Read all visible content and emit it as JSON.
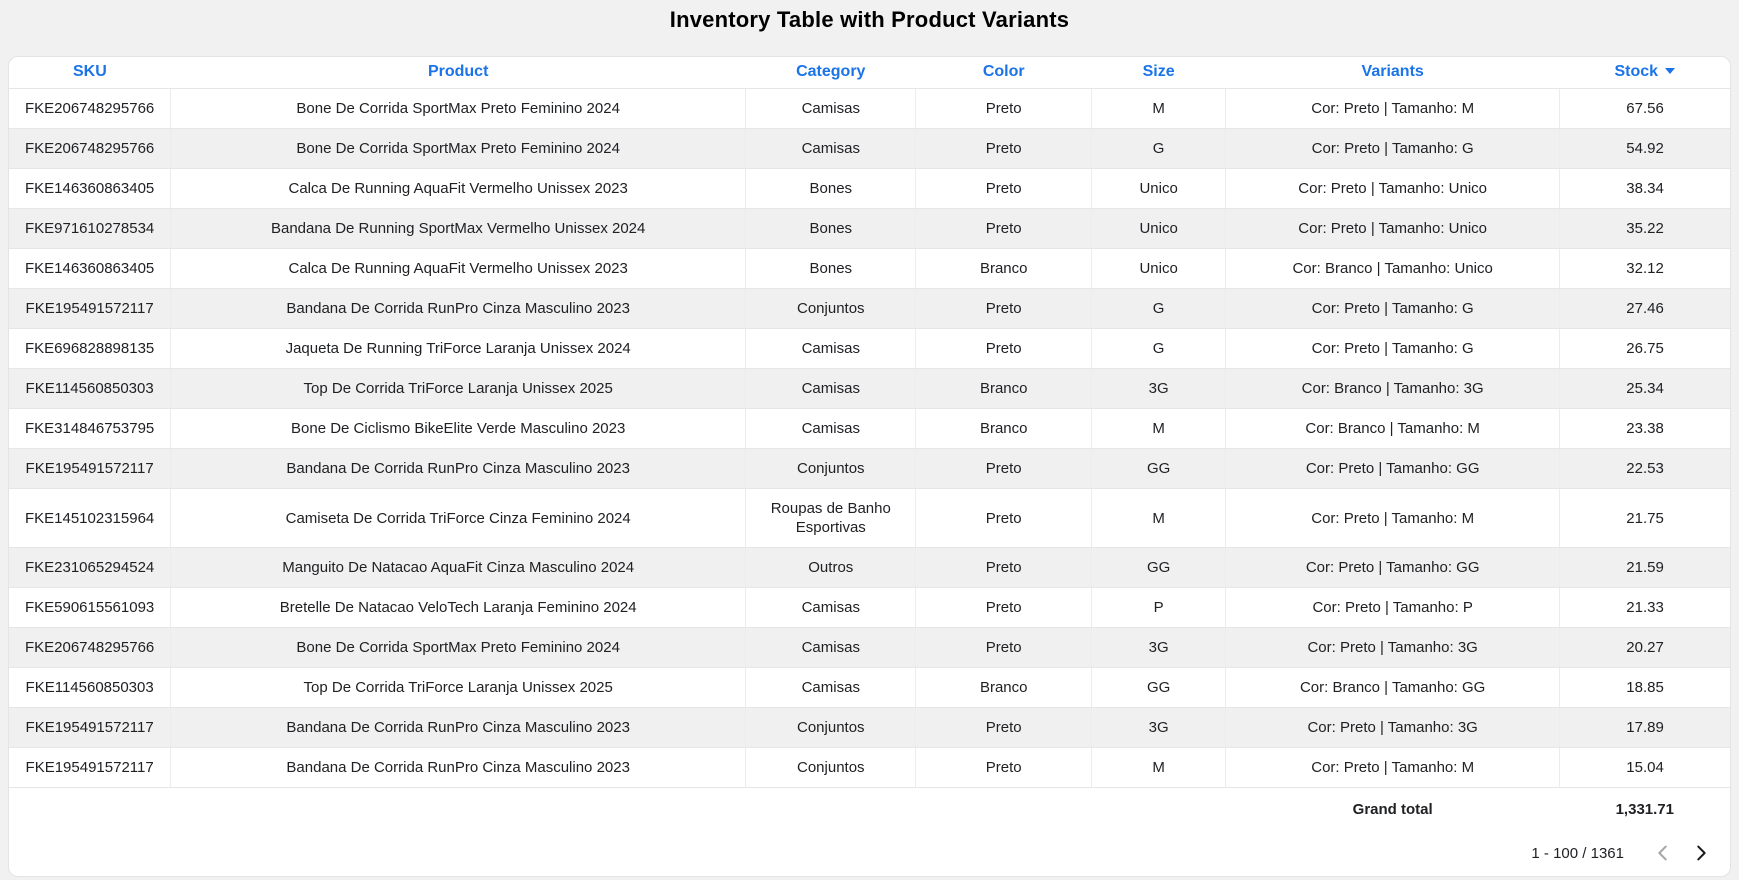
{
  "page": {
    "background_color": "#f1f1f1",
    "accent_color": "#1a73e8",
    "stripe_color": "#f0f0f0"
  },
  "chart_data": {
    "type": "table",
    "title": "Inventory Table with Product Variants",
    "columns": [
      "SKU",
      "Product",
      "Category",
      "Color",
      "Size",
      "Variants",
      "Stock"
    ],
    "sort": {
      "column": "Stock",
      "direction": "desc"
    },
    "rows": [
      [
        "FKE206748295766",
        "Bone De Corrida SportMax Preto Feminino 2024",
        "Camisas",
        "Preto",
        "M",
        "Cor: Preto | Tamanho: M",
        "67.56"
      ],
      [
        "FKE206748295766",
        "Bone De Corrida SportMax Preto Feminino 2024",
        "Camisas",
        "Preto",
        "G",
        "Cor: Preto | Tamanho: G",
        "54.92"
      ],
      [
        "FKE146360863405",
        "Calca De Running AquaFit Vermelho Unissex 2023",
        "Bones",
        "Preto",
        "Unico",
        "Cor: Preto | Tamanho: Unico",
        "38.34"
      ],
      [
        "FKE971610278534",
        "Bandana De Running SportMax Vermelho Unissex 2024",
        "Bones",
        "Preto",
        "Unico",
        "Cor: Preto | Tamanho: Unico",
        "35.22"
      ],
      [
        "FKE146360863405",
        "Calca De Running AquaFit Vermelho Unissex 2023",
        "Bones",
        "Branco",
        "Unico",
        "Cor: Branco | Tamanho: Unico",
        "32.12"
      ],
      [
        "FKE195491572117",
        "Bandana De Corrida RunPro Cinza Masculino 2023",
        "Conjuntos",
        "Preto",
        "G",
        "Cor: Preto | Tamanho: G",
        "27.46"
      ],
      [
        "FKE696828898135",
        "Jaqueta De Running TriForce Laranja Unissex 2024",
        "Camisas",
        "Preto",
        "G",
        "Cor: Preto | Tamanho: G",
        "26.75"
      ],
      [
        "FKE114560850303",
        "Top De Corrida TriForce Laranja Unissex 2025",
        "Camisas",
        "Branco",
        "3G",
        "Cor: Branco | Tamanho: 3G",
        "25.34"
      ],
      [
        "FKE314846753795",
        "Bone De Ciclismo BikeElite Verde Masculino 2023",
        "Camisas",
        "Branco",
        "M",
        "Cor: Branco | Tamanho: M",
        "23.38"
      ],
      [
        "FKE195491572117",
        "Bandana De Corrida RunPro Cinza Masculino 2023",
        "Conjuntos",
        "Preto",
        "GG",
        "Cor: Preto | Tamanho: GG",
        "22.53"
      ],
      [
        "FKE145102315964",
        "Camiseta De Corrida TriForce Cinza Feminino 2024",
        "Roupas de Banho Esportivas",
        "Preto",
        "M",
        "Cor: Preto | Tamanho: M",
        "21.75"
      ],
      [
        "FKE231065294524",
        "Manguito De Natacao AquaFit Cinza Masculino 2024",
        "Outros",
        "Preto",
        "GG",
        "Cor: Preto | Tamanho: GG",
        "21.59"
      ],
      [
        "FKE590615561093",
        "Bretelle De Natacao VeloTech Laranja Feminino 2024",
        "Camisas",
        "Preto",
        "P",
        "Cor: Preto | Tamanho: P",
        "21.33"
      ],
      [
        "FKE206748295766",
        "Bone De Corrida SportMax Preto Feminino 2024",
        "Camisas",
        "Preto",
        "3G",
        "Cor: Preto | Tamanho: 3G",
        "20.27"
      ],
      [
        "FKE114560850303",
        "Top De Corrida TriForce Laranja Unissex 2025",
        "Camisas",
        "Branco",
        "GG",
        "Cor: Branco | Tamanho: GG",
        "18.85"
      ],
      [
        "FKE195491572117",
        "Bandana De Corrida RunPro Cinza Masculino 2023",
        "Conjuntos",
        "Preto",
        "3G",
        "Cor: Preto | Tamanho: 3G",
        "17.89"
      ],
      [
        "FKE195491572117",
        "Bandana De Corrida RunPro Cinza Masculino 2023",
        "Conjuntos",
        "Preto",
        "M",
        "Cor: Preto | Tamanho: M",
        "15.04"
      ]
    ],
    "grand_total_label": "Grand total",
    "grand_total_value": "1,331.71",
    "pagination": "1 - 100 / 1361"
  }
}
